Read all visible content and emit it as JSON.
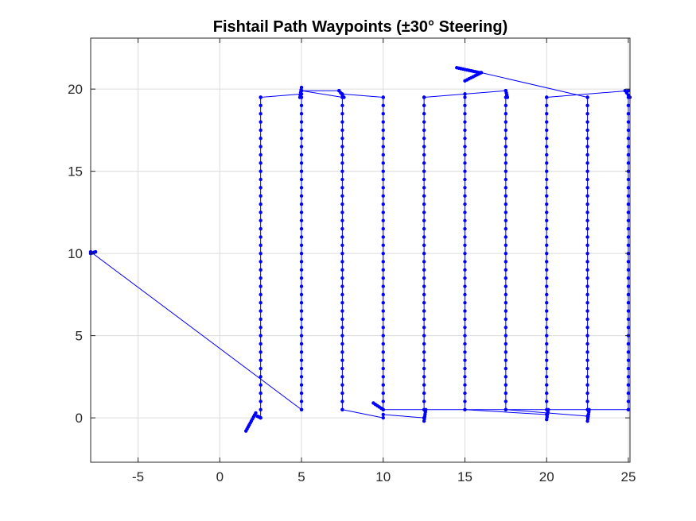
{
  "chart_data": {
    "type": "line",
    "title": "Fishtail Path Waypoints (±30° Steering)",
    "xlabel": "",
    "ylabel": "",
    "xlim": [
      -7.9,
      25.1
    ],
    "ylim": [
      -2.7,
      23.1
    ],
    "xticks": [
      -5,
      0,
      5,
      10,
      15,
      20,
      25
    ],
    "yticks": [
      0,
      5,
      10,
      15,
      20
    ],
    "grid": true,
    "marker": "dot",
    "color": "#0000ff",
    "legend": "none",
    "series": [
      {
        "segments": [
          {
            "kind": "arc",
            "from": [
              1.6,
              -0.8
            ],
            "to": [
              2.2,
              0.3
            ]
          },
          {
            "kind": "arc",
            "from": [
              2.3,
              0.1
            ],
            "to": [
              2.5,
              0.0
            ]
          },
          {
            "kind": "vertical",
            "x": 2.5,
            "y0": 0.0,
            "y1": 19.5
          },
          {
            "kind": "line",
            "from": [
              2.5,
              19.5
            ],
            "to": [
              5.0,
              19.7
            ]
          },
          {
            "kind": "arc",
            "from": [
              4.9,
              19.5
            ],
            "to": [
              5.0,
              20.1
            ]
          },
          {
            "kind": "vertical",
            "x": 5.0,
            "y0": 19.5,
            "y1": 0.5
          },
          {
            "kind": "line",
            "from": [
              5.0,
              0.5
            ],
            "to": [
              -7.9,
              10.1
            ]
          },
          {
            "kind": "arc",
            "from": [
              -7.9,
              10.0
            ],
            "to": [
              -7.6,
              10.1
            ]
          },
          {
            "kind": "line",
            "from": [
              5.0,
              19.9
            ],
            "to": [
              7.5,
              19.5
            ]
          },
          {
            "kind": "line",
            "from": [
              5.0,
              19.9
            ],
            "to": [
              7.3,
              19.9
            ]
          },
          {
            "kind": "arc",
            "from": [
              7.3,
              19.9
            ],
            "to": [
              7.6,
              19.5
            ]
          },
          {
            "kind": "vertical",
            "x": 7.5,
            "y0": 19.5,
            "y1": 0.5
          },
          {
            "kind": "line",
            "from": [
              7.5,
              0.5
            ],
            "to": [
              10.0,
              0.0
            ]
          },
          {
            "kind": "arc",
            "from": [
              9.4,
              0.9
            ],
            "to": [
              10.0,
              0.5
            ]
          },
          {
            "kind": "vertical",
            "x": 10.0,
            "y0": 0.5,
            "y1": 19.5
          },
          {
            "kind": "line",
            "from": [
              10.0,
              19.5
            ],
            "to": [
              7.5,
              19.7
            ]
          },
          {
            "kind": "line",
            "from": [
              10.0,
              0.5
            ],
            "to": [
              25.0,
              0.5
            ]
          },
          {
            "kind": "line",
            "from": [
              10.0,
              0.2
            ],
            "to": [
              12.5,
              0.0
            ]
          },
          {
            "kind": "arc",
            "from": [
              12.5,
              -0.2
            ],
            "to": [
              12.6,
              0.5
            ]
          },
          {
            "kind": "vertical",
            "x": 12.5,
            "y0": 0.5,
            "y1": 19.5
          },
          {
            "kind": "line",
            "from": [
              12.5,
              19.5
            ],
            "to": [
              15.0,
              19.7
            ]
          },
          {
            "kind": "vertical",
            "x": 15.0,
            "y0": 19.5,
            "y1": 0.5
          },
          {
            "kind": "line",
            "from": [
              15.0,
              19.7
            ],
            "to": [
              17.5,
              19.9
            ]
          },
          {
            "kind": "arc",
            "from": [
              14.5,
              21.3
            ],
            "to": [
              15.9,
              21.0
            ]
          },
          {
            "kind": "arc",
            "from": [
              15.0,
              20.5
            ],
            "to": [
              16.0,
              21.0
            ]
          },
          {
            "kind": "line",
            "from": [
              16.0,
              21.0
            ],
            "to": [
              22.5,
              19.5
            ]
          },
          {
            "kind": "arc",
            "from": [
              17.5,
              19.9
            ],
            "to": [
              17.6,
              19.5
            ]
          },
          {
            "kind": "vertical",
            "x": 17.5,
            "y0": 19.5,
            "y1": 0.5
          },
          {
            "kind": "line",
            "from": [
              15.0,
              0.5
            ],
            "to": [
              20.0,
              0.2
            ]
          },
          {
            "kind": "arc",
            "from": [
              20.0,
              -0.1
            ],
            "to": [
              20.1,
              0.5
            ]
          },
          {
            "kind": "vertical",
            "x": 20.0,
            "y0": 0.5,
            "y1": 19.5
          },
          {
            "kind": "line",
            "from": [
              20.0,
              19.5
            ],
            "to": [
              25.0,
              19.9
            ]
          },
          {
            "kind": "line",
            "from": [
              17.5,
              0.5
            ],
            "to": [
              22.5,
              0.1
            ]
          },
          {
            "kind": "arc",
            "from": [
              22.5,
              -0.2
            ],
            "to": [
              22.6,
              0.5
            ]
          },
          {
            "kind": "vertical",
            "x": 22.5,
            "y0": 0.5,
            "y1": 19.5
          },
          {
            "kind": "arc",
            "from": [
              24.8,
              19.9
            ],
            "to": [
              25.1,
              19.5
            ]
          },
          {
            "kind": "vertical",
            "x": 25.0,
            "y0": 19.5,
            "y1": 0.5
          }
        ]
      }
    ]
  }
}
